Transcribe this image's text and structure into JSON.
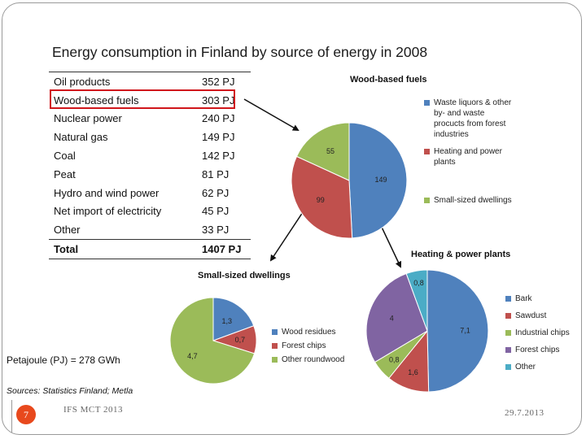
{
  "slide": {
    "title": "Energy consumption in Finland by source of energy in 2008",
    "petajoule_note": "Petajoule (PJ) = 278 GWh",
    "sources": "Sources: Statistics Finland; Metla",
    "page_number": "7",
    "footer_left": "IFS MCT 2013",
    "footer_right": "29.7.2013"
  },
  "energy_table": {
    "rows": [
      {
        "name": "Oil products",
        "value": "352 PJ"
      },
      {
        "name": "Wood-based fuels",
        "value": "303 PJ"
      },
      {
        "name": "Nuclear power",
        "value": "240 PJ"
      },
      {
        "name": "Natural gas",
        "value": "149 PJ"
      },
      {
        "name": "Coal",
        "value": "142 PJ"
      },
      {
        "name": "Peat",
        "value": "81 PJ"
      },
      {
        "name": "Hydro and wind power",
        "value": "62 PJ"
      },
      {
        "name": "Net import of electricity",
        "value": "45 PJ"
      },
      {
        "name": "Other",
        "value": "33 PJ"
      }
    ],
    "total": {
      "name": "Total",
      "value": "1407 PJ"
    }
  },
  "colors": {
    "blue": "#4f81bd",
    "red": "#c0504d",
    "green": "#9bbb59",
    "purple": "#8064a2",
    "cyan": "#4bacc6",
    "highlight": "#d0161b"
  },
  "chart_data": [
    {
      "type": "pie",
      "title": "Wood-based fuels",
      "categories": [
        "Waste liquors & other by- and waste procucts from forest industries",
        "Heating and power plants",
        "Small-sized dwellings"
      ],
      "values": [
        149,
        99,
        55
      ],
      "labels": [
        "149",
        "99",
        "55"
      ],
      "legend_position": "right"
    },
    {
      "type": "pie",
      "title": "Small-sized dwellings",
      "categories": [
        "Wood residues",
        "Forest chips",
        "Other roundwood"
      ],
      "values": [
        1.3,
        0.7,
        4.7
      ],
      "labels": [
        "1,3",
        "0,7",
        "4,7"
      ],
      "legend_position": "right"
    },
    {
      "type": "pie",
      "title": "Heating & power plants",
      "categories": [
        "Bark",
        "Sawdust",
        "Industrial chips",
        "Forest chips",
        "Other"
      ],
      "values": [
        7.1,
        1.6,
        0.8,
        4,
        0.8
      ],
      "labels": [
        "7,1",
        "1,6",
        "0,8",
        "4",
        "0,8"
      ],
      "legend_position": "right"
    }
  ]
}
